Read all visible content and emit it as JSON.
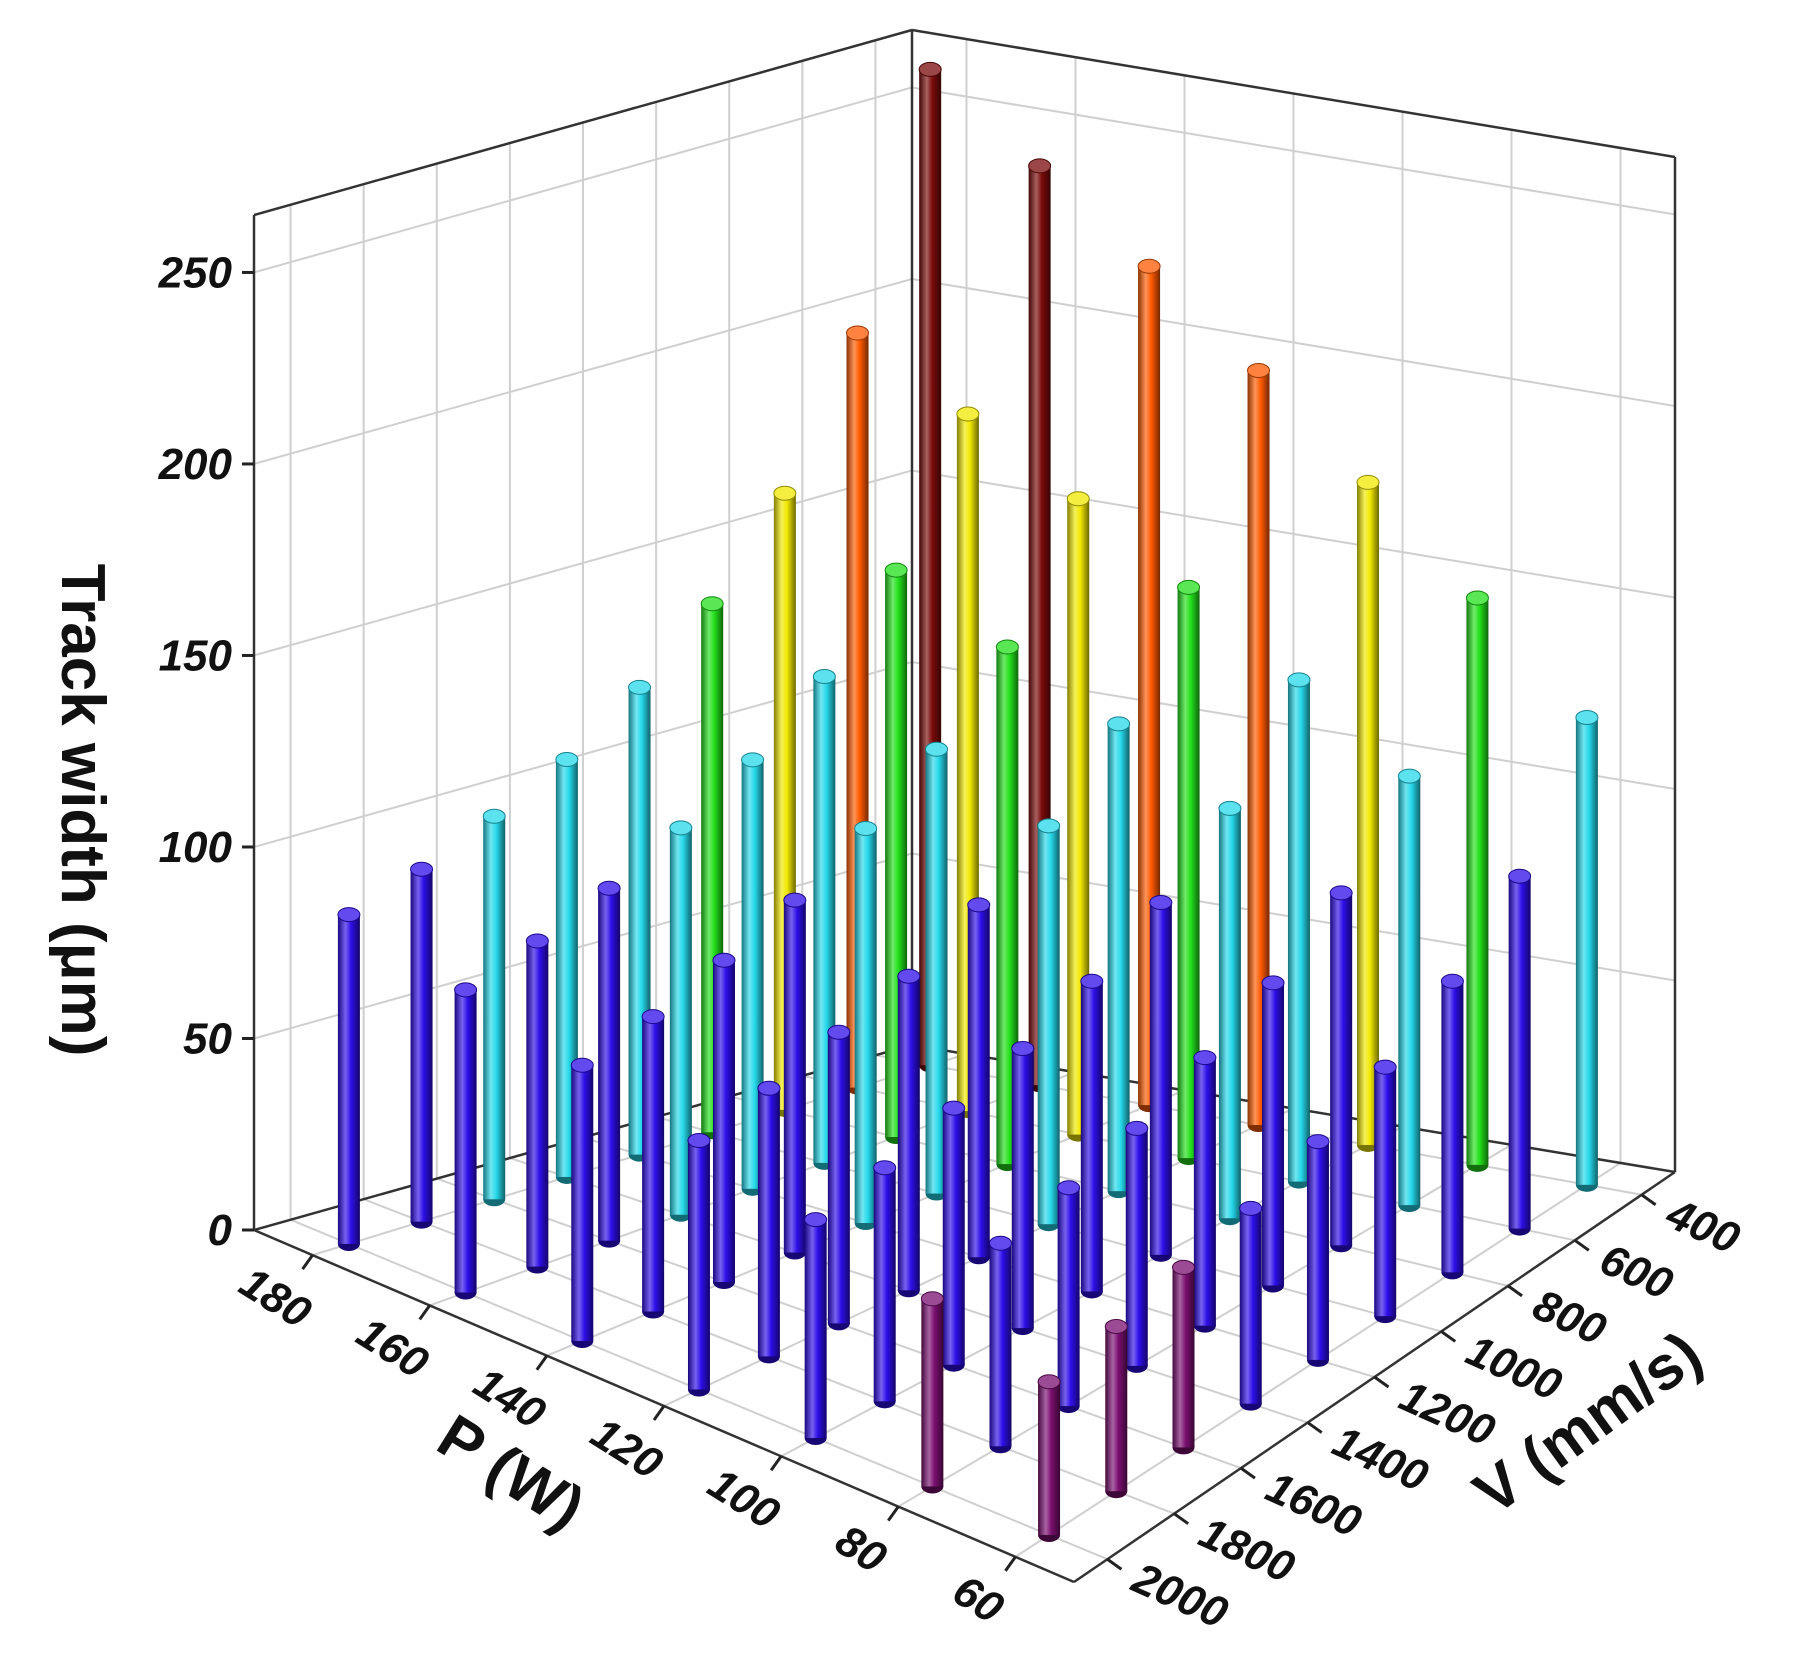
{
  "chart_data": {
    "type": "bar3d",
    "zlabel": "Track width (μm)",
    "xlabel": "P (W)",
    "ylabel": "V (mm/s)",
    "x": [
      180,
      160,
      140,
      120,
      100,
      80,
      60
    ],
    "y": [
      400,
      600,
      800,
      1000,
      1200,
      1400,
      1600,
      1800,
      2000
    ],
    "values": [
      [
        260,
        197,
        161,
        138,
        122,
        109,
        100,
        92,
        86
      ],
      [
        240,
        182,
        148,
        127,
        112,
        101,
        92,
        85,
        79
      ],
      [
        219,
        166,
        135,
        116,
        103,
        92,
        84,
        77,
        72
      ],
      [
        197,
        149,
        122,
        104,
        92,
        82,
        76,
        70,
        65
      ],
      [
        173,
        131,
        107,
        92,
        81,
        73,
        67,
        61,
        57
      ],
      [
        148,
        112,
        92,
        79,
        70,
        62,
        57,
        53,
        49
      ],
      [
        122,
        92,
        76,
        65,
        57,
        51,
        47,
        43,
        40
      ]
    ],
    "xlim": [
      50,
      190
    ],
    "ylim": [
      300,
      2100
    ],
    "zlim": [
      0,
      265
    ],
    "xticks": [
      180,
      160,
      140,
      120,
      100,
      80,
      60
    ],
    "yticks": [
      400,
      600,
      800,
      1000,
      1200,
      1400,
      1600,
      1800,
      2000
    ],
    "zticks": [
      0,
      50,
      100,
      150,
      200,
      250
    ],
    "grid": true,
    "colormap": [
      {
        "from": 0,
        "color": "#7a0f70"
      },
      {
        "from": 50,
        "color": "#2d0ee8"
      },
      {
        "from": 100,
        "color": "#25d8ea"
      },
      {
        "from": 135,
        "color": "#22e01a"
      },
      {
        "from": 160,
        "color": "#f0e800"
      },
      {
        "from": 190,
        "color": "#ff5a00"
      },
      {
        "from": 220,
        "color": "#ff0a00"
      },
      {
        "from": 240,
        "color": "#7a0a0a"
      }
    ]
  }
}
